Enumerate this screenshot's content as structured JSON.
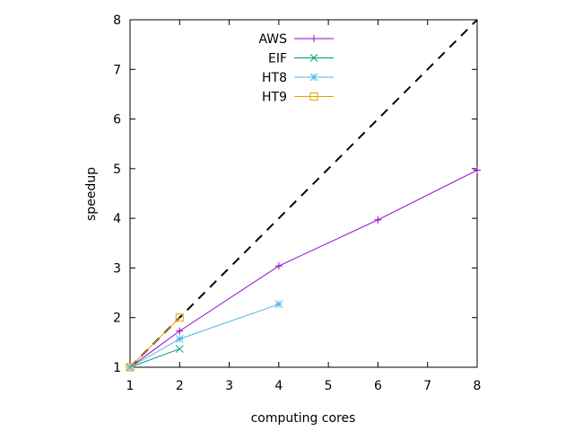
{
  "chart_data": {
    "type": "line",
    "xlabel": "computing cores",
    "ylabel": "speedup",
    "xlim": [
      1,
      8
    ],
    "ylim": [
      1,
      8
    ],
    "xticks": [
      1,
      2,
      3,
      4,
      5,
      6,
      7,
      8
    ],
    "yticks": [
      1,
      2,
      3,
      4,
      5,
      6,
      7,
      8
    ],
    "grid": false,
    "legend_position": "top-center",
    "reference_line": {
      "description": "ideal speedup",
      "style": "dashed",
      "color": "#000000",
      "x": [
        1,
        8
      ],
      "y": [
        1,
        8
      ]
    },
    "series": [
      {
        "name": "AWS",
        "color": "#9400d3",
        "marker": "plus",
        "x": [
          1,
          2,
          4,
          6,
          8
        ],
        "y": [
          1.0,
          1.73,
          3.04,
          3.97,
          4.97
        ]
      },
      {
        "name": "EIF",
        "color": "#009e73",
        "marker": "cross",
        "x": [
          1,
          2
        ],
        "y": [
          1.0,
          1.37
        ]
      },
      {
        "name": "HT8",
        "color": "#56b4e9",
        "marker": "star",
        "x": [
          1,
          2,
          4
        ],
        "y": [
          1.0,
          1.57,
          2.27
        ]
      },
      {
        "name": "HT9",
        "color": "#e69f00",
        "marker": "square",
        "x": [
          1,
          2
        ],
        "y": [
          1.0,
          2.0
        ]
      }
    ]
  }
}
